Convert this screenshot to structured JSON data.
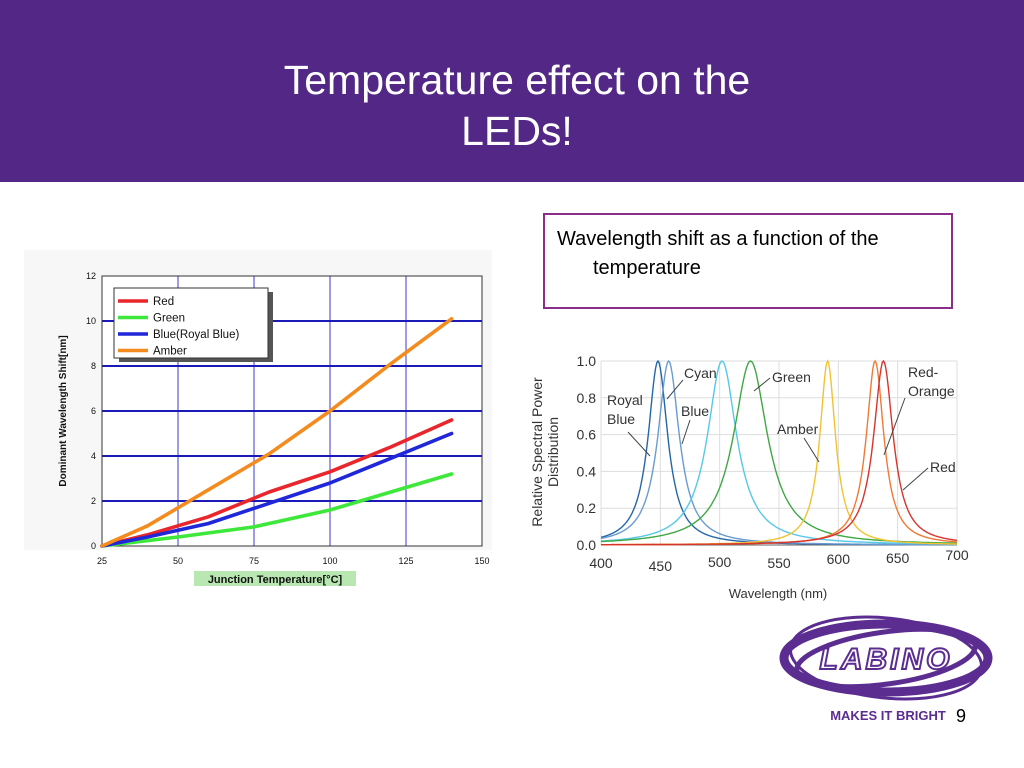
{
  "slide": {
    "title_line1": "Temperature effect on the",
    "title_line2": "LEDs!",
    "callout_text": "Wavelength shift as a function of the temperature",
    "page_number": "9",
    "header_color": "#532785",
    "callout_border_color": "#8a2e8c"
  },
  "logo": {
    "brand_text": "LABINO",
    "tagline": "MAKES IT BRIGHT",
    "color": "#5c2d91"
  },
  "chart_data": [
    {
      "type": "line",
      "xlabel": "Junction Temperature[°C]",
      "ylabel": "Dominant Wavelength Shift[nm]",
      "xlim": [
        25,
        150
      ],
      "ylim": [
        0,
        12
      ],
      "xticks": [
        25,
        50,
        75,
        100,
        125,
        150
      ],
      "yticks": [
        0,
        2,
        4,
        6,
        8,
        10,
        12
      ],
      "grid": true,
      "legend_position": "top-left",
      "series": [
        {
          "name": "Red",
          "color": "#e8262b",
          "points": [
            [
              25,
              0
            ],
            [
              40,
              0.5
            ],
            [
              60,
              1.3
            ],
            [
              80,
              2.4
            ],
            [
              100,
              3.3
            ],
            [
              120,
              4.4
            ],
            [
              140,
              5.6
            ]
          ]
        },
        {
          "name": "Green",
          "color": "#3ee83a",
          "points": [
            [
              25,
              0
            ],
            [
              50,
              0.4
            ],
            [
              75,
              0.85
            ],
            [
              100,
              1.6
            ],
            [
              120,
              2.4
            ],
            [
              140,
              3.2
            ]
          ]
        },
        {
          "name": "Blue(Royal Blue)",
          "color": "#1f27d9",
          "points": [
            [
              25,
              0
            ],
            [
              40,
              0.4
            ],
            [
              60,
              1.0
            ],
            [
              80,
              1.9
            ],
            [
              100,
              2.8
            ],
            [
              120,
              3.9
            ],
            [
              140,
              5.0
            ]
          ]
        },
        {
          "name": "Amber",
          "color": "#f38b1f",
          "points": [
            [
              25,
              0
            ],
            [
              40,
              0.9
            ],
            [
              60,
              2.5
            ],
            [
              80,
              4.1
            ],
            [
              100,
              6.0
            ],
            [
              120,
              8.1
            ],
            [
              140,
              10.1
            ]
          ]
        }
      ]
    },
    {
      "type": "line",
      "xlabel": "Wavelength (nm)",
      "ylabel": "Relative Spectral Power Distribution",
      "xlim": [
        400,
        700
      ],
      "ylim": [
        0,
        1.0
      ],
      "xticks": [
        400,
        450,
        500,
        550,
        600,
        650,
        700
      ],
      "yticks": [
        0.0,
        0.2,
        0.4,
        0.6,
        0.8,
        1.0
      ],
      "grid": true,
      "legend_position": "none",
      "series": [
        {
          "name": "Royal Blue",
          "color": "#2466a8",
          "peak": 448,
          "fwhm": 20
        },
        {
          "name": "Blue",
          "color": "#6a9bd0",
          "peak": 457,
          "fwhm": 22
        },
        {
          "name": "Cyan",
          "color": "#56c8ea",
          "peak": 502,
          "fwhm": 30
        },
        {
          "name": "Green",
          "color": "#3fa843",
          "peak": 526,
          "fwhm": 35
        },
        {
          "name": "Amber",
          "color": "#f1c332",
          "peak": 591,
          "fwhm": 16
        },
        {
          "name": "Red-Orange",
          "color": "#ef7a35",
          "peak": 631,
          "fwhm": 18
        },
        {
          "name": "Red",
          "color": "#d8342c",
          "peak": 638,
          "fwhm": 20
        }
      ],
      "annotations": [
        "Royal Blue",
        "Blue",
        "Cyan",
        "Green",
        "Amber",
        "Red-Orange",
        "Red"
      ]
    }
  ]
}
